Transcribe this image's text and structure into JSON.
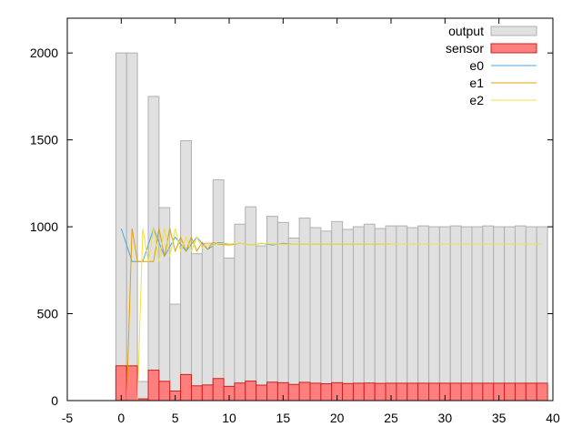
{
  "chart_data": {
    "type": "bar",
    "xlim": [
      -5,
      40
    ],
    "ylim": [
      0,
      2200
    ],
    "xticks": [
      "-5",
      "0",
      "5",
      "10",
      "15",
      "20",
      "25",
      "30",
      "35",
      "40"
    ],
    "yticks": [
      "0",
      "500",
      "1000",
      "1500",
      "2000"
    ],
    "grid": false,
    "legend_position": "top-right",
    "bar_series": [
      {
        "name": "output",
        "color": "#e0e0e0",
        "stroke": "#b0b0b0",
        "x": [
          0,
          1,
          2,
          3,
          4,
          5,
          6,
          7,
          8,
          9,
          10,
          11,
          12,
          13,
          14,
          15,
          16,
          17,
          18,
          19,
          20,
          21,
          22,
          23,
          24,
          25,
          26,
          27,
          28,
          29,
          30,
          31,
          32,
          33,
          34,
          35,
          36,
          37,
          38,
          39
        ],
        "values": [
          2000,
          2000,
          110,
          1750,
          1110,
          555,
          1495,
          845,
          905,
          1270,
          820,
          1015,
          1115,
          890,
          1060,
          1025,
          935,
          1050,
          995,
          975,
          1030,
          985,
          1000,
          1015,
          990,
          1005,
          1005,
          995,
          1005,
          1000,
          1000,
          1005,
          1000,
          1000,
          1005,
          1000,
          1000,
          1005,
          1000,
          1000
        ]
      },
      {
        "name": "sensor",
        "color": "#ff7f7f",
        "stroke": "#cc2020",
        "x": [
          0,
          1,
          2,
          3,
          4,
          5,
          6,
          7,
          8,
          9,
          10,
          11,
          12,
          13,
          14,
          15,
          16,
          17,
          18,
          19,
          20,
          21,
          22,
          23,
          24,
          25,
          26,
          27,
          28,
          29,
          30,
          31,
          32,
          33,
          34,
          35,
          36,
          37,
          38,
          39
        ],
        "values": [
          200,
          200,
          10,
          175,
          111,
          55,
          150,
          85,
          90,
          127,
          82,
          101,
          112,
          89,
          106,
          103,
          93,
          105,
          100,
          97,
          103,
          98,
          100,
          101,
          99,
          100,
          100,
          100,
          100,
          100,
          100,
          100,
          100,
          100,
          100,
          100,
          100,
          100,
          100,
          100
        ]
      }
    ],
    "line_series": [
      {
        "name": "e0",
        "color": "#4aa6e8",
        "x": [
          0,
          1,
          2,
          3,
          4,
          5,
          6,
          7,
          8,
          9,
          10,
          11,
          12,
          13,
          14,
          15,
          16,
          17,
          18,
          19,
          20,
          21,
          22,
          23,
          24
        ],
        "values": [
          990,
          800,
          800,
          990,
          830,
          940,
          860,
          940,
          870,
          910,
          900,
          905,
          895,
          905,
          895,
          905,
          900,
          900,
          900,
          900,
          900,
          900,
          900,
          900,
          900
        ]
      },
      {
        "name": "e1",
        "color": "#e3a000",
        "x": [
          0.5,
          1,
          1.5,
          2,
          2.5,
          3,
          3.5,
          4,
          4.5,
          5,
          5.5,
          6,
          6.5,
          7,
          7.5,
          8,
          8.5,
          9,
          10,
          11,
          12,
          13,
          14,
          15,
          16,
          17,
          18,
          19,
          20,
          21,
          22,
          23,
          24,
          25
        ],
        "values": [
          0,
          990,
          800,
          800,
          800,
          800,
          990,
          830,
          990,
          860,
          940,
          860,
          940,
          860,
          910,
          870,
          910,
          900,
          895,
          905,
          895,
          905,
          900,
          900,
          900,
          900,
          900,
          900,
          900,
          900,
          900,
          900,
          900,
          900
        ]
      },
      {
        "name": "e2",
        "color": "#f0e040",
        "x": [
          1,
          1.5,
          2,
          2.5,
          3,
          3.5,
          4,
          4.5,
          5,
          5.5,
          6,
          6.5,
          7,
          7.5,
          8,
          8.5,
          9,
          10,
          11,
          12,
          13,
          14,
          15,
          16,
          17,
          18,
          19,
          20,
          25,
          30,
          35,
          39
        ],
        "values": [
          0,
          0,
          990,
          800,
          990,
          800,
          990,
          830,
          990,
          860,
          940,
          860,
          940,
          880,
          910,
          890,
          905,
          900,
          905,
          895,
          905,
          900,
          900,
          900,
          900,
          900,
          900,
          900,
          900,
          900,
          900,
          900
        ]
      }
    ]
  }
}
